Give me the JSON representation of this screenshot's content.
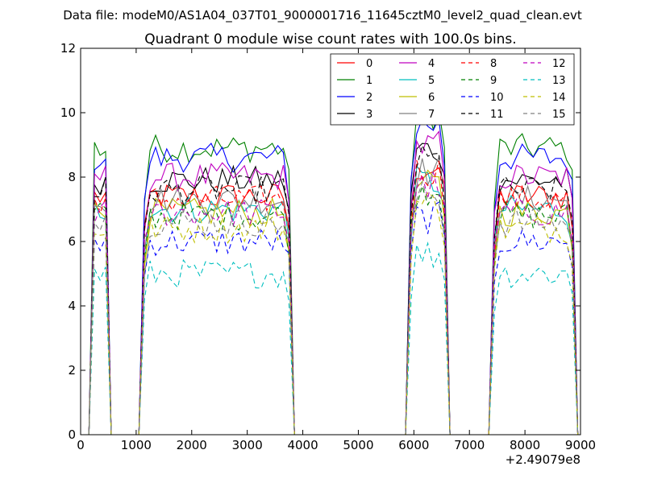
{
  "chart_data": {
    "type": "line",
    "suptitle": "Data file: modeM0/AS1A04_037T01_9000001716_11645cztM0_level2_quad_clean.evt",
    "title": "Quadrant 0 module wise count rates with 100.0s bins.",
    "xlabel": "",
    "ylabel": "",
    "x_offset_label": "+2.49079e8",
    "xlim": [
      0,
      9000
    ],
    "ylim": [
      0,
      12
    ],
    "xticks": [
      "0",
      "1000",
      "2000",
      "3000",
      "4000",
      "5000",
      "6000",
      "7000",
      "8000",
      "9000"
    ],
    "yticks": [
      "0",
      "2",
      "4",
      "6",
      "8",
      "10",
      "12"
    ],
    "grid": false,
    "legend_position": "top-right",
    "segments": [
      {
        "x_start": 250,
        "x_end": 450,
        "steps": 3
      },
      {
        "x_start": 1150,
        "x_end": 3750,
        "steps": 27
      },
      {
        "x_start": 5950,
        "x_end": 6550,
        "steps": 7
      },
      {
        "x_start": 7450,
        "x_end": 8850,
        "steps": 15
      }
    ],
    "series": [
      {
        "name": "0",
        "color": "#ff0000",
        "dash": "solid",
        "level": 7.4
      },
      {
        "name": "1",
        "color": "#008000",
        "dash": "solid",
        "level": 8.9
      },
      {
        "name": "2",
        "color": "#0000ff",
        "dash": "solid",
        "level": 8.6
      },
      {
        "name": "3",
        "color": "#000000",
        "dash": "solid",
        "level": 7.9
      },
      {
        "name": "4",
        "color": "#bf00bf",
        "dash": "solid",
        "level": 8.0
      },
      {
        "name": "5",
        "color": "#00bfbf",
        "dash": "solid",
        "level": 7.0
      },
      {
        "name": "6",
        "color": "#bfbf00",
        "dash": "solid",
        "level": 6.9
      },
      {
        "name": "7",
        "color": "#808080",
        "dash": "solid",
        "level": 7.3
      },
      {
        "name": "8",
        "color": "#ff0000",
        "dash": "dashed",
        "level": 7.3
      },
      {
        "name": "9",
        "color": "#008000",
        "dash": "dashed",
        "level": 6.8
      },
      {
        "name": "10",
        "color": "#0000ff",
        "dash": "dashed",
        "level": 6.0
      },
      {
        "name": "11",
        "color": "#000000",
        "dash": "dashed",
        "level": 7.6
      },
      {
        "name": "12",
        "color": "#bf00bf",
        "dash": "dashed",
        "level": 6.9
      },
      {
        "name": "13",
        "color": "#00bfbf",
        "dash": "dashed",
        "level": 5.0
      },
      {
        "name": "14",
        "color": "#bfbf00",
        "dash": "dashed",
        "level": 6.4
      },
      {
        "name": "15",
        "color": "#808080",
        "dash": "dashed",
        "level": 6.6
      }
    ]
  }
}
